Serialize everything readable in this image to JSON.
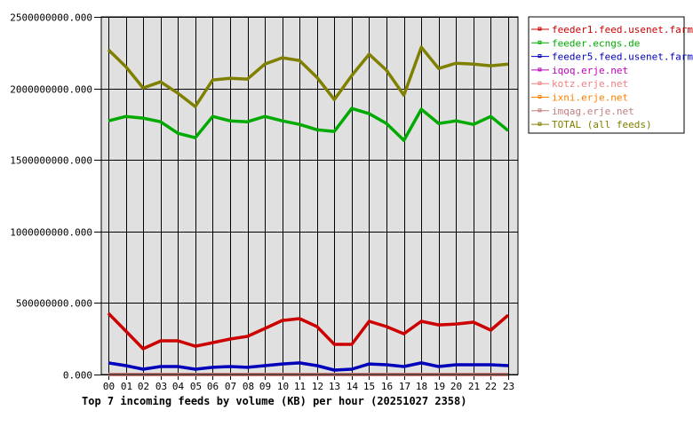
{
  "chart_data": {
    "type": "line",
    "title": "Top 7 incoming feeds by volume (KB) per hour (20251027 2358)",
    "xlabel": "",
    "ylabel": "",
    "ylim": [
      0,
      2500000000
    ],
    "grid": true,
    "legend_position": "right-top",
    "y_ticks": [
      "0.000",
      "500000000.000",
      "1000000000.000",
      "1500000000.000",
      "2000000000.000",
      "2500000000.000"
    ],
    "y_tick_values": [
      0,
      500000000,
      1000000000,
      1500000000,
      2000000000,
      2500000000
    ],
    "categories": [
      "00",
      "01",
      "02",
      "03",
      "04",
      "05",
      "06",
      "07",
      "08",
      "09",
      "10",
      "11",
      "12",
      "13",
      "14",
      "15",
      "16",
      "17",
      "18",
      "19",
      "20",
      "21",
      "22",
      "23"
    ],
    "series": [
      {
        "name": "feeder1.feed.usenet.farm",
        "color": "#cc0000",
        "values": [
          428000000,
          304000000,
          180000000,
          236000000,
          236000000,
          198000000,
          223000000,
          248000000,
          267000000,
          322000000,
          378000000,
          391000000,
          335000000,
          211000000,
          211000000,
          372000000,
          335000000,
          285000000,
          372000000,
          347000000,
          353000000,
          366000000,
          310000000,
          415000000
        ]
      },
      {
        "name": "feeder.ecngs.de",
        "color": "#00aa00",
        "values": [
          1773000000,
          1804000000,
          1792000000,
          1767000000,
          1686000000,
          1655000000,
          1804000000,
          1773000000,
          1767000000,
          1804000000,
          1773000000,
          1748000000,
          1711000000,
          1699000000,
          1860000000,
          1823000000,
          1755000000,
          1637000000,
          1854000000,
          1755000000,
          1773000000,
          1748000000,
          1804000000,
          1705000000
        ]
      },
      {
        "name": "feeder5.feed.usenet.farm",
        "color": "#0000bb",
        "values": [
          81000000,
          62000000,
          37000000,
          56000000,
          56000000,
          37000000,
          50000000,
          56000000,
          50000000,
          62000000,
          74000000,
          81000000,
          62000000,
          31000000,
          37000000,
          74000000,
          68000000,
          56000000,
          81000000,
          56000000,
          68000000,
          68000000,
          68000000,
          62000000
        ]
      },
      {
        "name": "iqoq.erje.net",
        "color": "#bb00bb",
        "values": [
          0,
          0,
          0,
          0,
          0,
          0,
          0,
          0,
          0,
          0,
          0,
          0,
          0,
          0,
          0,
          0,
          0,
          0,
          0,
          0,
          0,
          0,
          0,
          0
        ]
      },
      {
        "name": "kotz.erje.net",
        "color": "#f08080",
        "values": [
          0,
          0,
          0,
          0,
          0,
          0,
          0,
          0,
          0,
          0,
          0,
          0,
          0,
          0,
          0,
          0,
          0,
          0,
          0,
          0,
          0,
          0,
          0,
          0
        ]
      },
      {
        "name": "ixni.erje.net",
        "color": "#ff8000",
        "values": [
          0,
          0,
          0,
          0,
          0,
          0,
          0,
          0,
          0,
          0,
          0,
          0,
          0,
          0,
          0,
          0,
          0,
          0,
          0,
          0,
          0,
          0,
          0,
          0
        ]
      },
      {
        "name": "imqag.erje.net",
        "color": "#c08080",
        "values": [
          0,
          0,
          0,
          0,
          0,
          0,
          0,
          0,
          0,
          0,
          0,
          0,
          0,
          0,
          0,
          0,
          0,
          0,
          0,
          0,
          0,
          0,
          0,
          0
        ]
      },
      {
        "name": "TOTAL (all feeds)",
        "color": "#808000",
        "values": [
          2270000000,
          2152000000,
          2003000000,
          2046000000,
          1966000000,
          1873000000,
          2059000000,
          2071000000,
          2065000000,
          2170000000,
          2214000000,
          2195000000,
          2077000000,
          1922000000,
          2090000000,
          2239000000,
          2127000000,
          1953000000,
          2288000000,
          2139000000,
          2176000000,
          2170000000,
          2158000000,
          2170000000
        ]
      }
    ]
  },
  "style": {
    "plot_bg": "#e0e0e0",
    "grid_color": "#000000",
    "frame_color": "#000000"
  }
}
